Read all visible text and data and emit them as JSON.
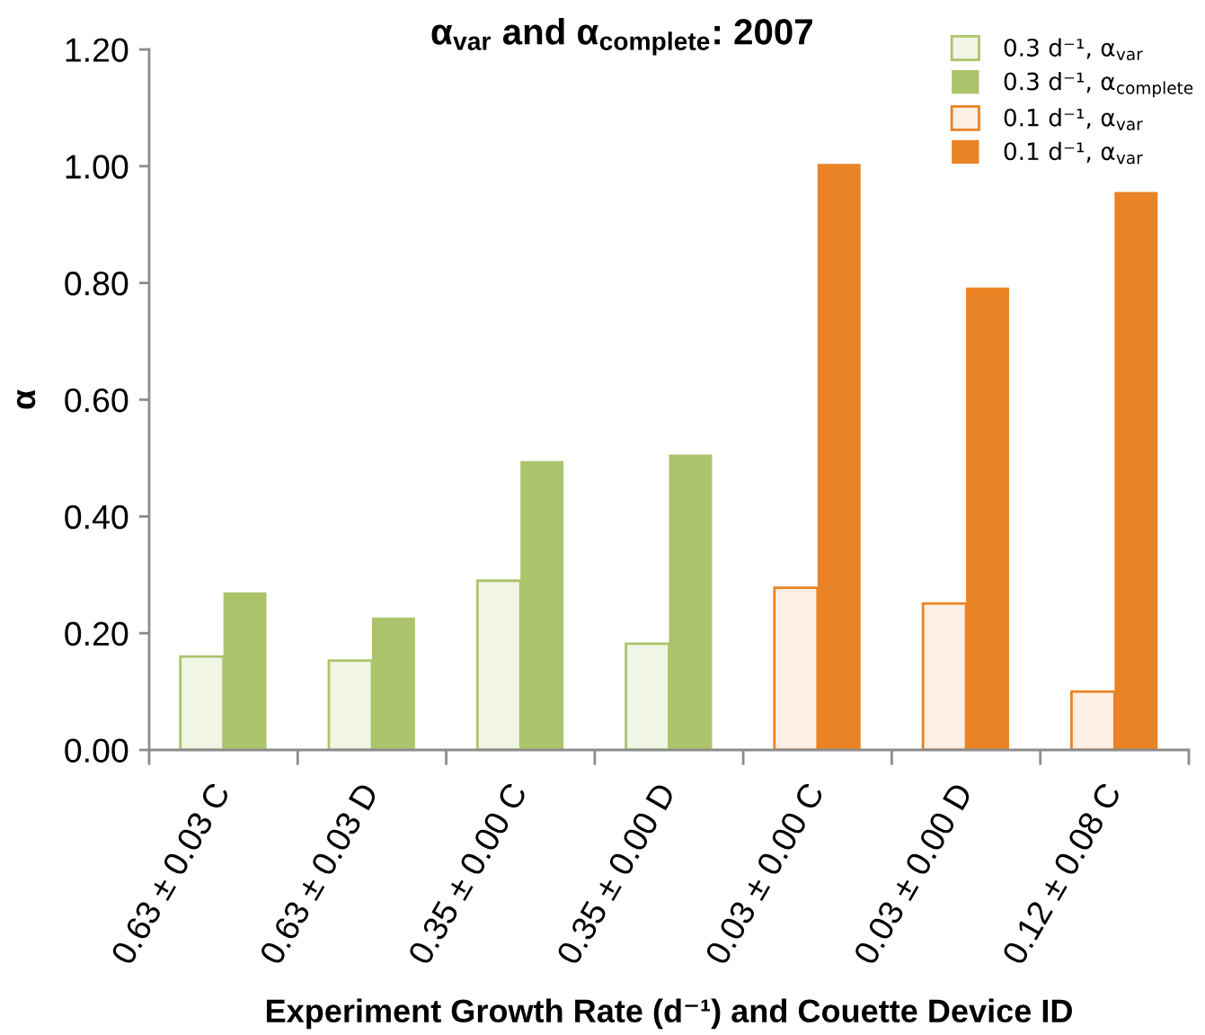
{
  "chart_data": {
    "type": "bar",
    "title": "α$_{var}$ and α$_{complete}$: 2007",
    "xlabel": "Experiment Growth Rate (d⁻¹) and Couette Device ID",
    "ylabel": "α",
    "categories": [
      "0.63 ± 0.03 C",
      "0.63 ± 0.03 D",
      "0.35 ± 0.00 C",
      "0.35 ± 0.00 D",
      "0.03 ± 0.00 C",
      "0.03 ± 0.00 D",
      "0.12 ± 0.08 C"
    ],
    "series": [
      {
        "name": "0.3 d⁻¹, α$_{var}$",
        "color": "#f0f5e6",
        "values": [
          0.16,
          0.153,
          0.29,
          0.182,
          null,
          null,
          null
        ]
      },
      {
        "name": "0.3 d⁻¹, α$_{complete}$",
        "color": "#abc46b",
        "values": [
          0.27,
          0.227,
          0.495,
          0.506,
          null,
          null,
          null
        ]
      },
      {
        "name": "0.1 d⁻¹, α$_{var}$",
        "color": "#fdefe3",
        "values": [
          null,
          null,
          null,
          null,
          0.278,
          0.251,
          0.1
        ]
      },
      {
        "name": "0.1 d⁻¹, α$_{var}$",
        "color": "#e98325",
        "values": [
          null,
          null,
          null,
          null,
          1.004,
          0.792,
          0.956
        ]
      }
    ],
    "ylim": [
      0,
      1.2
    ],
    "yticks": [
      {
        "value": 0,
        "label": "0.00"
      },
      {
        "value": 0.2,
        "label": "0.20"
      },
      {
        "value": 0.4,
        "label": "0.40"
      },
      {
        "value": 0.6,
        "label": "0.60"
      },
      {
        "value": 0.8,
        "label": "0.80"
      },
      {
        "value": 1.0,
        "label": "1.00"
      },
      {
        "value": 1.2,
        "label": "1.20"
      }
    ],
    "grid": false,
    "legend": "top right"
  }
}
